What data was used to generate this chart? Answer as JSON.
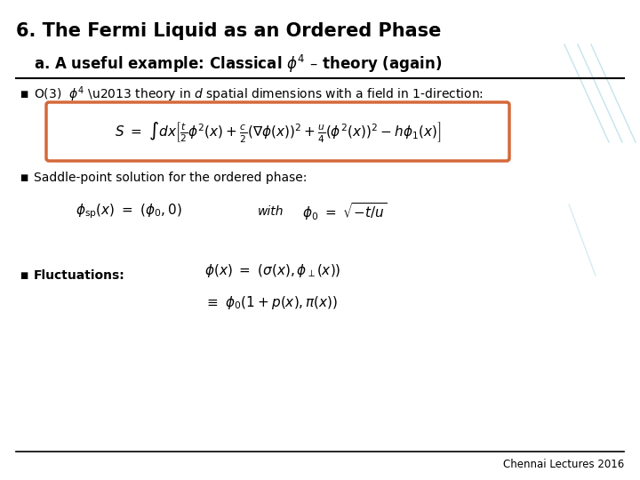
{
  "title": "6. The Fermi Liquid as an Ordered Phase",
  "subtitle": "a. A useful example: Classical $\\phi^4$ – theory (again)",
  "footer": "Chennai Lectures 2016",
  "box_color": "#d4693a",
  "bg_color": "#ffffff",
  "title_color": "#000000",
  "text_color": "#000000",
  "decor_color": "#add8e6"
}
